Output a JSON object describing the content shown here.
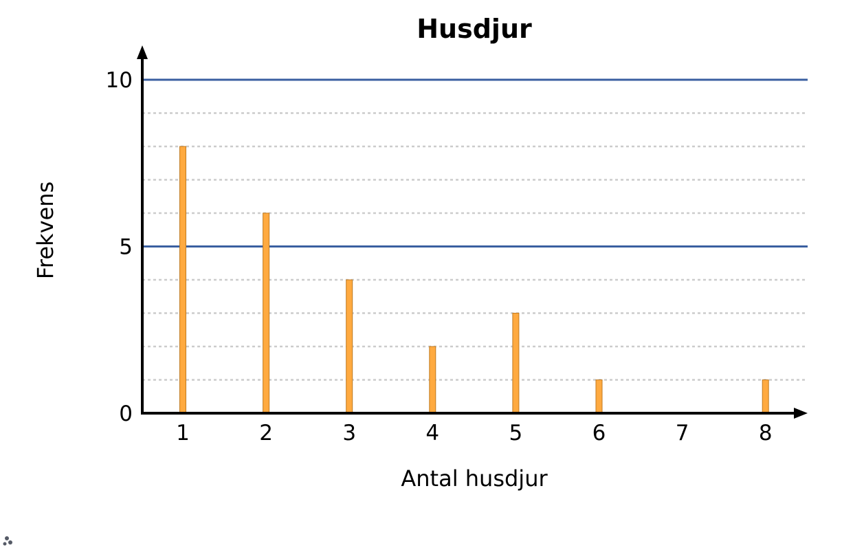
{
  "chart_data": {
    "type": "bar",
    "title": "Husdjur",
    "xlabel": "Antal husdjur",
    "ylabel": "Frekvens",
    "categories": [
      "1",
      "2",
      "3",
      "4",
      "5",
      "6",
      "7",
      "8"
    ],
    "values": [
      8,
      6,
      4,
      2,
      3,
      1,
      0,
      1
    ],
    "x_ticks": [
      "1",
      "2",
      "3",
      "4",
      "5",
      "6",
      "7",
      "8"
    ],
    "y_ticks": [
      "0",
      "5",
      "10"
    ],
    "ylim": [
      0,
      10
    ],
    "major_gridlines": [
      5,
      10
    ],
    "minor_gridlines": [
      1,
      2,
      3,
      4,
      6,
      7,
      8,
      9
    ],
    "grid": true,
    "colors": {
      "bar_fill": "#FFAA40",
      "bar_stroke": "#C07A20",
      "major_grid": "#3A5FA0",
      "minor_grid": "#CCCCCC",
      "axis": "#000000"
    }
  }
}
